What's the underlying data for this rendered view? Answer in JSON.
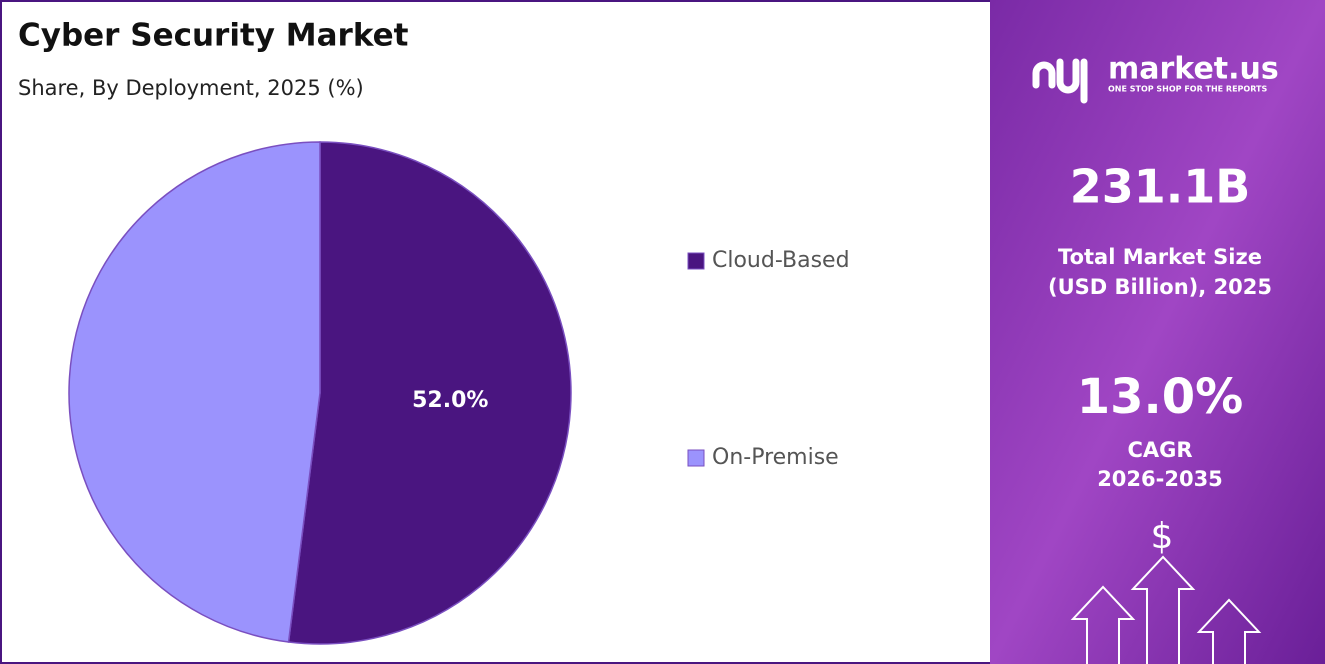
{
  "chart_data": {
    "type": "pie",
    "title": "Cyber Security Market",
    "subtitle": "Share, By Deployment, 2025 (%)",
    "categories": [
      "Cloud-Based",
      "On-Premise"
    ],
    "values": [
      52.0,
      48.0
    ],
    "value_labels": [
      "52.0%",
      null
    ],
    "colors": [
      "#4a1580",
      "#9b93fd"
    ]
  },
  "panel": {
    "logo": "market.us",
    "tagline": "ONE STOP SHOP FOR THE REPORTS",
    "market_size": "231.1B",
    "market_size_label": [
      "Total Market Size",
      "(USD Billion), 2025"
    ],
    "cagr": "13.0%",
    "cagr_label": [
      "CAGR",
      "2026-2035"
    ],
    "currency": "$"
  }
}
